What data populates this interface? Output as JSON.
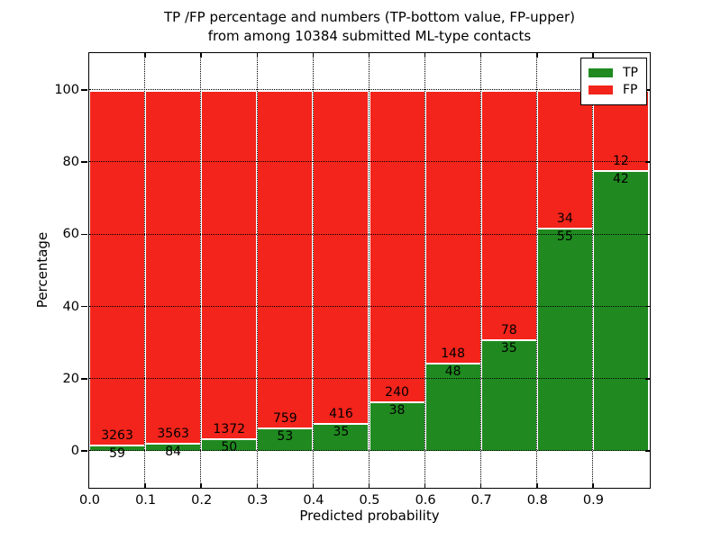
{
  "figure": {
    "title_line1": "TP /FP percentage and numbers (TP-bottom value, FP-upper)",
    "title_line2": "from among 10384 submitted ML-type contacts"
  },
  "axes": {
    "xlabel": "Predicted probability",
    "ylabel": "Percentage",
    "xtick_labels": [
      "0.0",
      "0.1",
      "0.2",
      "0.3",
      "0.4",
      "0.5",
      "0.6",
      "0.7",
      "0.8",
      "0.9"
    ],
    "ytick_labels": [
      "0",
      "20",
      "40",
      "60",
      "80",
      "100"
    ]
  },
  "legend": {
    "items": [
      {
        "label": "TP",
        "color": "#208a20"
      },
      {
        "label": "FP",
        "color": "#f3241b"
      }
    ]
  },
  "chart_data": {
    "type": "bar",
    "variant": "stacked-100-percent",
    "title": "TP /FP percentage and numbers (TP-bottom value, FP-upper) from among 10384 submitted ML-type contacts",
    "xlabel": "Predicted probability",
    "ylabel": "Percentage",
    "total_submitted": 10384,
    "x_bin_left_edges": [
      0.0,
      0.1,
      0.2,
      0.3,
      0.4,
      0.5,
      0.6,
      0.7,
      0.8,
      0.9
    ],
    "bin_width": 0.1,
    "xlim": [
      0.0,
      1.0
    ],
    "ylim": [
      -10,
      110
    ],
    "yticks": [
      0,
      20,
      40,
      60,
      80,
      100
    ],
    "grid": {
      "style": "dotted",
      "color": "#000000",
      "drawn_over_bars": true
    },
    "legend_position": "upper-right",
    "colors": {
      "tp": "#208a20",
      "fp": "#f3241b",
      "bar_edge": "#ffffff"
    },
    "series": [
      {
        "name": "TP",
        "counts": [
          59,
          84,
          50,
          53,
          35,
          38,
          48,
          35,
          55,
          42
        ],
        "percent": [
          1.78,
          2.3,
          3.52,
          6.53,
          7.76,
          13.67,
          24.49,
          30.97,
          61.8,
          77.78
        ]
      },
      {
        "name": "FP",
        "counts": [
          3263,
          3563,
          1372,
          759,
          416,
          240,
          148,
          78,
          34,
          12
        ],
        "percent": [
          98.22,
          97.7,
          96.48,
          93.47,
          92.24,
          86.33,
          75.51,
          69.03,
          38.2,
          22.22
        ]
      }
    ]
  }
}
